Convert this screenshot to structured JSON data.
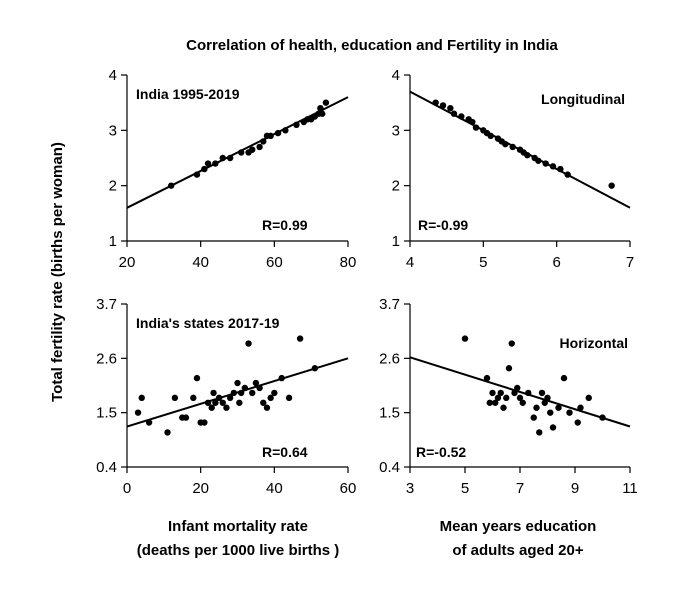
{
  "figure": {
    "title": "Correlation of health, education and Fertility in India",
    "ylabel": "Total fertility rate (births per woman)",
    "xlabel_left_line1": "Infant mortality rate",
    "xlabel_left_line2": "(deaths per 1000 live births )",
    "xlabel_right_line1": "Mean years education",
    "xlabel_right_line2": "of adults aged 20+"
  },
  "chart_data": [
    {
      "type": "scatter",
      "title": "India 1995-2019",
      "annotation": "R=0.99",
      "xlabel": "Infant mortality rate (deaths per 1000 live births )",
      "ylabel": "Total fertility rate (births per woman)",
      "xlim": [
        20,
        80
      ],
      "ylim": [
        1,
        4
      ],
      "xticks": [
        20,
        40,
        60,
        80
      ],
      "yticks": [
        1,
        2,
        3,
        4
      ],
      "points": [
        [
          32,
          2.0
        ],
        [
          39,
          2.2
        ],
        [
          41,
          2.3
        ],
        [
          42,
          2.4
        ],
        [
          44,
          2.4
        ],
        [
          46,
          2.5
        ],
        [
          48,
          2.5
        ],
        [
          51,
          2.6
        ],
        [
          53,
          2.6
        ],
        [
          54,
          2.65
        ],
        [
          56,
          2.7
        ],
        [
          57,
          2.8
        ],
        [
          58,
          2.9
        ],
        [
          59,
          2.9
        ],
        [
          61,
          2.95
        ],
        [
          63,
          3.0
        ],
        [
          66,
          3.1
        ],
        [
          68,
          3.15
        ],
        [
          69,
          3.2
        ],
        [
          70,
          3.2
        ],
        [
          71,
          3.25
        ],
        [
          72,
          3.3
        ],
        [
          72.5,
          3.4
        ],
        [
          73,
          3.3
        ],
        [
          74,
          3.5
        ]
      ],
      "trendline": [
        [
          20,
          1.6
        ],
        [
          80,
          3.6
        ]
      ]
    },
    {
      "type": "scatter",
      "title": "Longitudinal",
      "annotation": "R=-0.99",
      "xlabel": "Mean years education of adults aged 20+",
      "xlim": [
        4,
        7
      ],
      "ylim": [
        1,
        4
      ],
      "xticks": [
        4,
        5,
        6,
        7
      ],
      "yticks": [
        1,
        2,
        3,
        4
      ],
      "points": [
        [
          4.35,
          3.5
        ],
        [
          4.45,
          3.45
        ],
        [
          4.55,
          3.4
        ],
        [
          4.6,
          3.3
        ],
        [
          4.7,
          3.25
        ],
        [
          4.8,
          3.2
        ],
        [
          4.85,
          3.15
        ],
        [
          4.9,
          3.05
        ],
        [
          5.0,
          3.0
        ],
        [
          5.05,
          2.95
        ],
        [
          5.1,
          2.9
        ],
        [
          5.2,
          2.85
        ],
        [
          5.25,
          2.8
        ],
        [
          5.3,
          2.75
        ],
        [
          5.4,
          2.7
        ],
        [
          5.5,
          2.65
        ],
        [
          5.55,
          2.6
        ],
        [
          5.6,
          2.55
        ],
        [
          5.7,
          2.5
        ],
        [
          5.75,
          2.45
        ],
        [
          5.85,
          2.4
        ],
        [
          5.95,
          2.35
        ],
        [
          6.05,
          2.3
        ],
        [
          6.15,
          2.2
        ],
        [
          6.75,
          2.0
        ]
      ],
      "trendline": [
        [
          4,
          3.7
        ],
        [
          7,
          1.6
        ]
      ]
    },
    {
      "type": "scatter",
      "title": "India's states 2017-19",
      "annotation": "R=0.64",
      "xlabel": "Infant mortality rate (deaths per 1000 live births )",
      "xlim": [
        0,
        60
      ],
      "ylim": [
        0.4,
        3.7
      ],
      "xticks": [
        0,
        20,
        40,
        60
      ],
      "yticks": [
        0.4,
        1.5,
        2.6,
        3.7
      ],
      "points": [
        [
          3,
          1.5
        ],
        [
          4,
          1.8
        ],
        [
          6,
          1.3
        ],
        [
          11,
          1.1
        ],
        [
          13,
          1.8
        ],
        [
          15,
          1.4
        ],
        [
          16,
          1.4
        ],
        [
          18,
          1.8
        ],
        [
          19,
          2.2
        ],
        [
          20,
          1.3
        ],
        [
          21,
          1.3
        ],
        [
          22,
          1.7
        ],
        [
          23,
          1.6
        ],
        [
          23.5,
          1.9
        ],
        [
          24,
          1.7
        ],
        [
          25,
          1.8
        ],
        [
          26,
          1.7
        ],
        [
          27,
          1.6
        ],
        [
          28,
          1.8
        ],
        [
          29,
          1.9
        ],
        [
          30,
          2.1
        ],
        [
          30.5,
          1.7
        ],
        [
          31,
          1.9
        ],
        [
          32,
          2.0
        ],
        [
          33,
          2.9
        ],
        [
          34,
          1.9
        ],
        [
          35,
          2.1
        ],
        [
          36,
          2.0
        ],
        [
          37,
          1.7
        ],
        [
          38,
          1.6
        ],
        [
          39,
          1.8
        ],
        [
          40,
          1.9
        ],
        [
          42,
          2.2
        ],
        [
          44,
          1.8
        ],
        [
          47,
          3.0
        ],
        [
          51,
          2.4
        ]
      ],
      "trendline": [
        [
          0,
          1.22
        ],
        [
          60,
          2.6
        ]
      ]
    },
    {
      "type": "scatter",
      "title": "Horizontal",
      "annotation": "R=-0.52",
      "xlabel": "Mean years education of adults aged 20+",
      "xlim": [
        3,
        11
      ],
      "ylim": [
        0.4,
        3.7
      ],
      "xticks": [
        3,
        5,
        7,
        9,
        11
      ],
      "yticks": [
        0.4,
        1.5,
        2.6,
        3.7
      ],
      "points": [
        [
          5.0,
          3.0
        ],
        [
          5.8,
          2.2
        ],
        [
          5.9,
          1.7
        ],
        [
          6.0,
          1.9
        ],
        [
          6.1,
          1.7
        ],
        [
          6.2,
          1.8
        ],
        [
          6.3,
          1.9
        ],
        [
          6.4,
          1.6
        ],
        [
          6.5,
          1.8
        ],
        [
          6.6,
          2.4
        ],
        [
          6.7,
          2.9
        ],
        [
          6.8,
          1.9
        ],
        [
          6.9,
          2.0
        ],
        [
          7.0,
          1.8
        ],
        [
          7.1,
          1.7
        ],
        [
          7.3,
          1.9
        ],
        [
          7.5,
          1.4
        ],
        [
          7.6,
          1.6
        ],
        [
          7.7,
          1.1
        ],
        [
          7.8,
          1.9
        ],
        [
          7.9,
          1.7
        ],
        [
          8.0,
          1.8
        ],
        [
          8.1,
          1.5
        ],
        [
          8.2,
          1.2
        ],
        [
          8.4,
          1.6
        ],
        [
          8.6,
          2.2
        ],
        [
          8.8,
          1.5
        ],
        [
          9.1,
          1.3
        ],
        [
          9.2,
          1.6
        ],
        [
          9.5,
          1.8
        ],
        [
          10.0,
          1.4
        ]
      ],
      "trendline": [
        [
          3,
          2.62
        ],
        [
          11,
          1.22
        ]
      ]
    }
  ]
}
